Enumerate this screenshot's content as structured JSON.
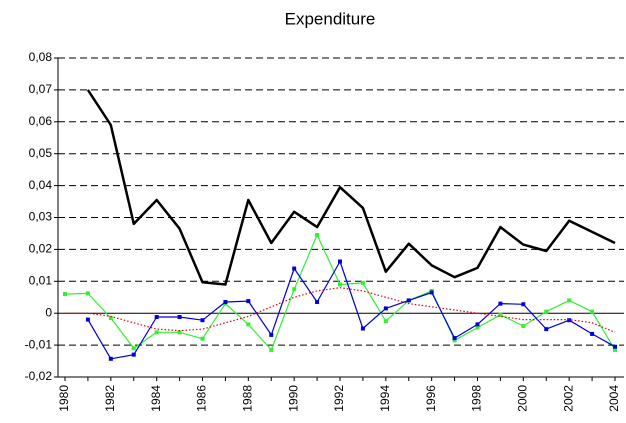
{
  "chart_data": {
    "type": "line",
    "title": "Expenditure",
    "categories": [
      "1980",
      null,
      "1982",
      null,
      "1984",
      null,
      "1986",
      null,
      "1988",
      null,
      "1990",
      null,
      "1992",
      null,
      "1994",
      null,
      "1996",
      null,
      "1998",
      null,
      "2000",
      null,
      "2002",
      null,
      "2004"
    ],
    "series": [
      {
        "color": "#000000",
        "style": "solid",
        "marker": false,
        "values": [
          null,
          0.07,
          0.059,
          0.028,
          0.0355,
          0.0265,
          0.0097,
          0.009,
          0.0355,
          0.022,
          0.0318,
          0.027,
          0.0395,
          0.033,
          0.013,
          0.0218,
          0.015,
          0.0113,
          0.0142,
          0.027,
          0.0215,
          0.0195,
          0.029,
          0.0255,
          0.022
        ]
      },
      {
        "color": "#33ee33",
        "style": "solid",
        "marker": true,
        "values": [
          0.006,
          0.0062,
          -0.0015,
          -0.011,
          -0.006,
          -0.006,
          -0.008,
          0.003,
          -0.0035,
          -0.0115,
          0.0075,
          0.0245,
          0.009,
          0.0095,
          -0.0025,
          0.004,
          0.007,
          -0.0085,
          -0.0045,
          -0.0005,
          -0.004,
          0.0005,
          0.004,
          0.0005,
          -0.0115
        ]
      },
      {
        "color": "#0000dd",
        "style": "solid",
        "marker": true,
        "values": [
          null,
          -0.002,
          -0.0143,
          -0.013,
          -0.0012,
          -0.0012,
          -0.0022,
          0.0035,
          0.0038,
          -0.0068,
          0.014,
          0.0035,
          0.0162,
          -0.0048,
          0.0015,
          0.004,
          0.0065,
          -0.0078,
          -0.0035,
          0.003,
          0.0028,
          -0.005,
          -0.0022,
          -0.0065,
          -0.0105
        ]
      },
      {
        "color": "#dd0000",
        "style": "dotted",
        "marker": false,
        "values": [
          0,
          0,
          -0.001,
          -0.003,
          -0.005,
          -0.0055,
          -0.005,
          -0.003,
          -0.001,
          0.002,
          0.005,
          0.007,
          0.008,
          0.007,
          0.005,
          0.003,
          0.002,
          0.001,
          0,
          -0.001,
          -0.002,
          -0.002,
          -0.002,
          -0.003,
          -0.006
        ]
      }
    ],
    "ylim": [
      -0.02,
      0.08
    ],
    "yticks": [
      {
        "value": -0.02,
        "label": "-0,02"
      },
      {
        "value": -0.01,
        "label": "-0,01"
      },
      0,
      {
        "value": 0.01,
        "label": "0,01"
      },
      {
        "value": 0.02,
        "label": "0,02"
      },
      {
        "value": 0.03,
        "label": "0,03"
      },
      {
        "value": 0.04,
        "label": "0,04"
      },
      {
        "value": 0.05,
        "label": "0,05"
      },
      {
        "value": 0.06,
        "label": "0,06"
      },
      {
        "value": 0.07,
        "label": "0,07"
      },
      {
        "value": 0.08,
        "label": "0,08"
      }
    ],
    "grid": true
  }
}
